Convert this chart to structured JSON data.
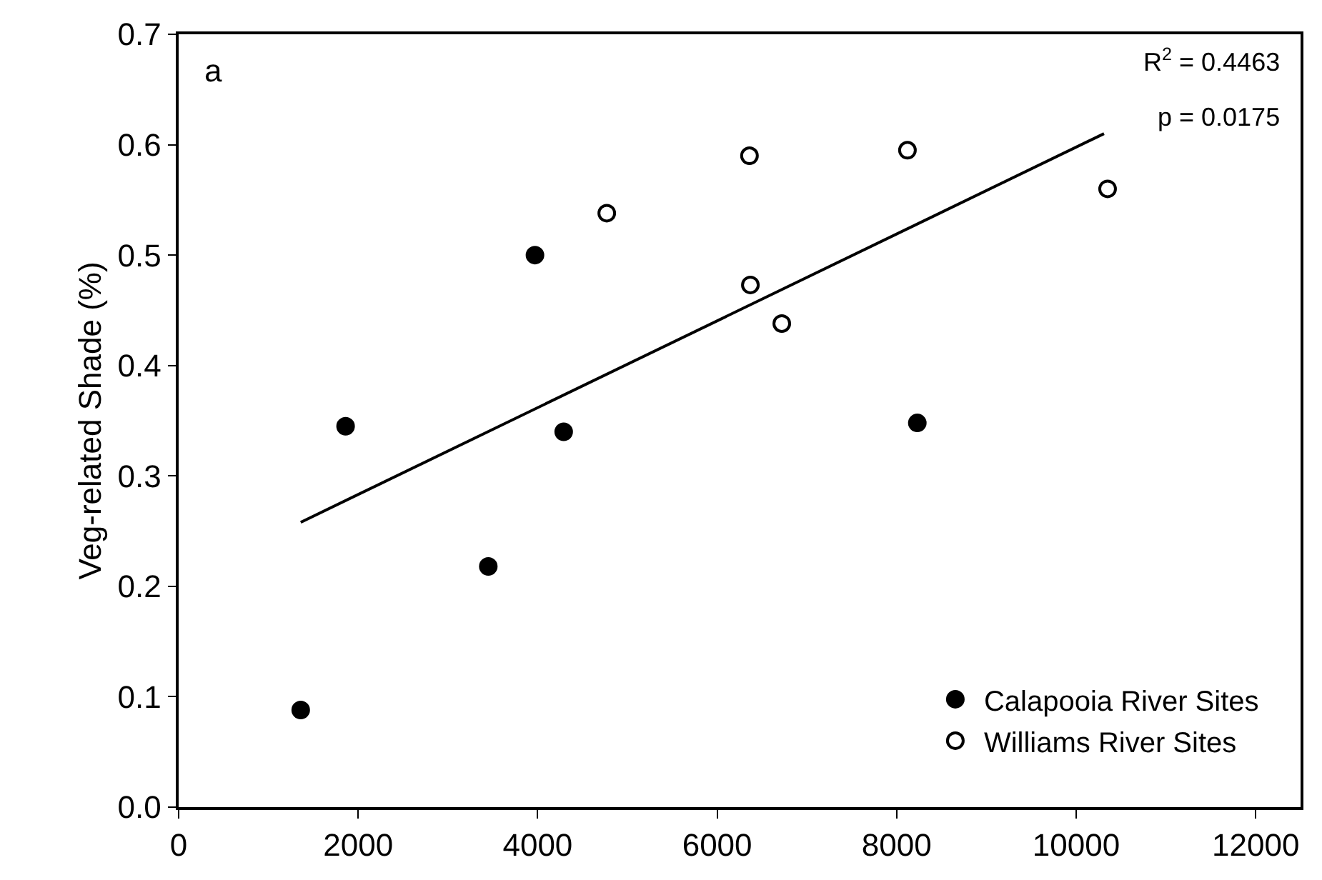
{
  "chart_data": {
    "type": "scatter",
    "ylabel": "Veg-related Shade (%)",
    "xlim": [
      0,
      12500
    ],
    "xticks": [
      0,
      2000,
      4000,
      6000,
      8000,
      10000,
      12000
    ],
    "ylim": [
      0,
      0.7
    ],
    "yticks": [
      {
        "value": 0,
        "label": "0.0"
      },
      0.1,
      0.2,
      0.3,
      0.4,
      0.5,
      0.6,
      0.7
    ],
    "grid": false,
    "legend": "bottom right",
    "series": [
      {
        "name": "Calapooia River Sites",
        "color": "#000000",
        "marker": "circle",
        "x": [
          1360,
          1860,
          3450,
          3970,
          4290,
          8230
        ],
        "values": [
          0.088,
          0.345,
          0.218,
          0.5,
          0.34,
          0.348
        ]
      },
      {
        "name": "Williams River Sites",
        "color": "#ffffff",
        "marker": "circle",
        "x": [
          4770,
          6360,
          6370,
          6720,
          8120,
          10350
        ],
        "values": [
          0.538,
          0.59,
          0.473,
          0.438,
          0.595,
          0.56
        ]
      },
      {
        "type": "line",
        "color": "#000000",
        "marker": "none",
        "x": [
          1360,
          10310
        ],
        "values": [
          0.258,
          0.61
        ]
      }
    ],
    "annotations": [
      "a",
      "R$^{2}$ = 0.4463",
      "p = 0.0175"
    ]
  }
}
